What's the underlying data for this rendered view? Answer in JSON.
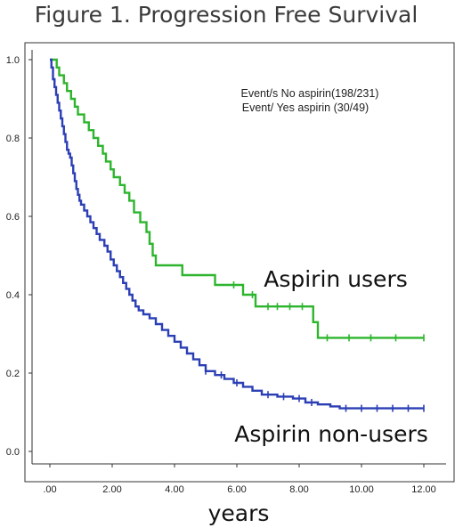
{
  "chart_data": {
    "type": "line",
    "title": "Figure 1. Progression Free Survival",
    "xlabel": "years",
    "ylabel": "",
    "xlim": [
      0,
      12
    ],
    "ylim": [
      0,
      1
    ],
    "x_ticks": [
      ".00",
      "2.00",
      "4.00",
      "6.00",
      "8.00",
      "10.00",
      "12.00"
    ],
    "y_ticks": [
      "0.0",
      "0.2",
      "0.4",
      "0.6",
      "0.8",
      "1.0"
    ],
    "annotations": [
      "Event/s No aspirin(198/231)",
      "Event/ Yes aspirin (30/49)"
    ],
    "grid": false,
    "step": true,
    "series": [
      {
        "name": "Aspirin users",
        "color": "#2db52d",
        "points": [
          [
            0,
            1.0
          ],
          [
            0.1,
            1.0
          ],
          [
            0.22,
            0.98
          ],
          [
            0.3,
            0.96
          ],
          [
            0.45,
            0.94
          ],
          [
            0.55,
            0.92
          ],
          [
            0.68,
            0.9
          ],
          [
            0.8,
            0.88
          ],
          [
            0.9,
            0.86
          ],
          [
            1.1,
            0.84
          ],
          [
            1.25,
            0.82
          ],
          [
            1.4,
            0.8
          ],
          [
            1.55,
            0.78
          ],
          [
            1.7,
            0.76
          ],
          [
            1.8,
            0.74
          ],
          [
            1.95,
            0.72
          ],
          [
            2.05,
            0.7
          ],
          [
            2.25,
            0.68
          ],
          [
            2.4,
            0.66
          ],
          [
            2.55,
            0.64
          ],
          [
            2.7,
            0.61
          ],
          [
            2.9,
            0.585
          ],
          [
            3.1,
            0.56
          ],
          [
            3.2,
            0.53
          ],
          [
            3.3,
            0.5
          ],
          [
            3.4,
            0.475
          ],
          [
            4.05,
            0.475
          ],
          [
            4.25,
            0.45
          ],
          [
            5.2,
            0.45
          ],
          [
            5.3,
            0.425
          ],
          [
            6.1,
            0.425
          ],
          [
            6.2,
            0.4
          ],
          [
            6.6,
            0.37
          ],
          [
            8.25,
            0.37
          ],
          [
            8.45,
            0.33
          ],
          [
            8.6,
            0.29
          ],
          [
            12.0,
            0.29
          ]
        ],
        "censor_x": [
          5.9,
          6.5,
          7.0,
          7.3,
          7.7,
          8.1,
          8.9,
          9.6,
          10.3,
          11.1,
          12.0
        ]
      },
      {
        "name": "Aspirin non-users",
        "color": "#2b3fb5",
        "points": [
          [
            0,
            1.0
          ],
          [
            0.05,
            0.98
          ],
          [
            0.1,
            0.95
          ],
          [
            0.15,
            0.93
          ],
          [
            0.2,
            0.91
          ],
          [
            0.25,
            0.89
          ],
          [
            0.3,
            0.87
          ],
          [
            0.35,
            0.85
          ],
          [
            0.4,
            0.83
          ],
          [
            0.45,
            0.81
          ],
          [
            0.5,
            0.79
          ],
          [
            0.55,
            0.77
          ],
          [
            0.6,
            0.76
          ],
          [
            0.65,
            0.75
          ],
          [
            0.7,
            0.73
          ],
          [
            0.75,
            0.71
          ],
          [
            0.8,
            0.69
          ],
          [
            0.85,
            0.67
          ],
          [
            0.9,
            0.655
          ],
          [
            0.95,
            0.64
          ],
          [
            1.0,
            0.63
          ],
          [
            1.1,
            0.615
          ],
          [
            1.2,
            0.6
          ],
          [
            1.3,
            0.585
          ],
          [
            1.4,
            0.57
          ],
          [
            1.5,
            0.555
          ],
          [
            1.6,
            0.54
          ],
          [
            1.75,
            0.525
          ],
          [
            1.85,
            0.51
          ],
          [
            1.95,
            0.49
          ],
          [
            2.05,
            0.475
          ],
          [
            2.15,
            0.46
          ],
          [
            2.25,
            0.445
          ],
          [
            2.35,
            0.43
          ],
          [
            2.45,
            0.415
          ],
          [
            2.55,
            0.4
          ],
          [
            2.65,
            0.385
          ],
          [
            2.75,
            0.37
          ],
          [
            2.85,
            0.36
          ],
          [
            3.0,
            0.35
          ],
          [
            3.2,
            0.34
          ],
          [
            3.4,
            0.325
          ],
          [
            3.6,
            0.31
          ],
          [
            3.8,
            0.295
          ],
          [
            4.0,
            0.28
          ],
          [
            4.2,
            0.265
          ],
          [
            4.4,
            0.25
          ],
          [
            4.6,
            0.235
          ],
          [
            4.8,
            0.22
          ],
          [
            5.0,
            0.205
          ],
          [
            5.3,
            0.195
          ],
          [
            5.6,
            0.185
          ],
          [
            5.9,
            0.175
          ],
          [
            6.2,
            0.165
          ],
          [
            6.5,
            0.155
          ],
          [
            6.8,
            0.145
          ],
          [
            7.3,
            0.14
          ],
          [
            7.8,
            0.135
          ],
          [
            8.2,
            0.125
          ],
          [
            8.6,
            0.12
          ],
          [
            9.0,
            0.115
          ],
          [
            9.3,
            0.11
          ],
          [
            12.0,
            0.11
          ]
        ],
        "censor_x": [
          5.0,
          5.5,
          6.0,
          7.0,
          7.5,
          8.0,
          8.4,
          9.5,
          10.0,
          10.5,
          11.0,
          11.5,
          12.0
        ]
      }
    ]
  }
}
